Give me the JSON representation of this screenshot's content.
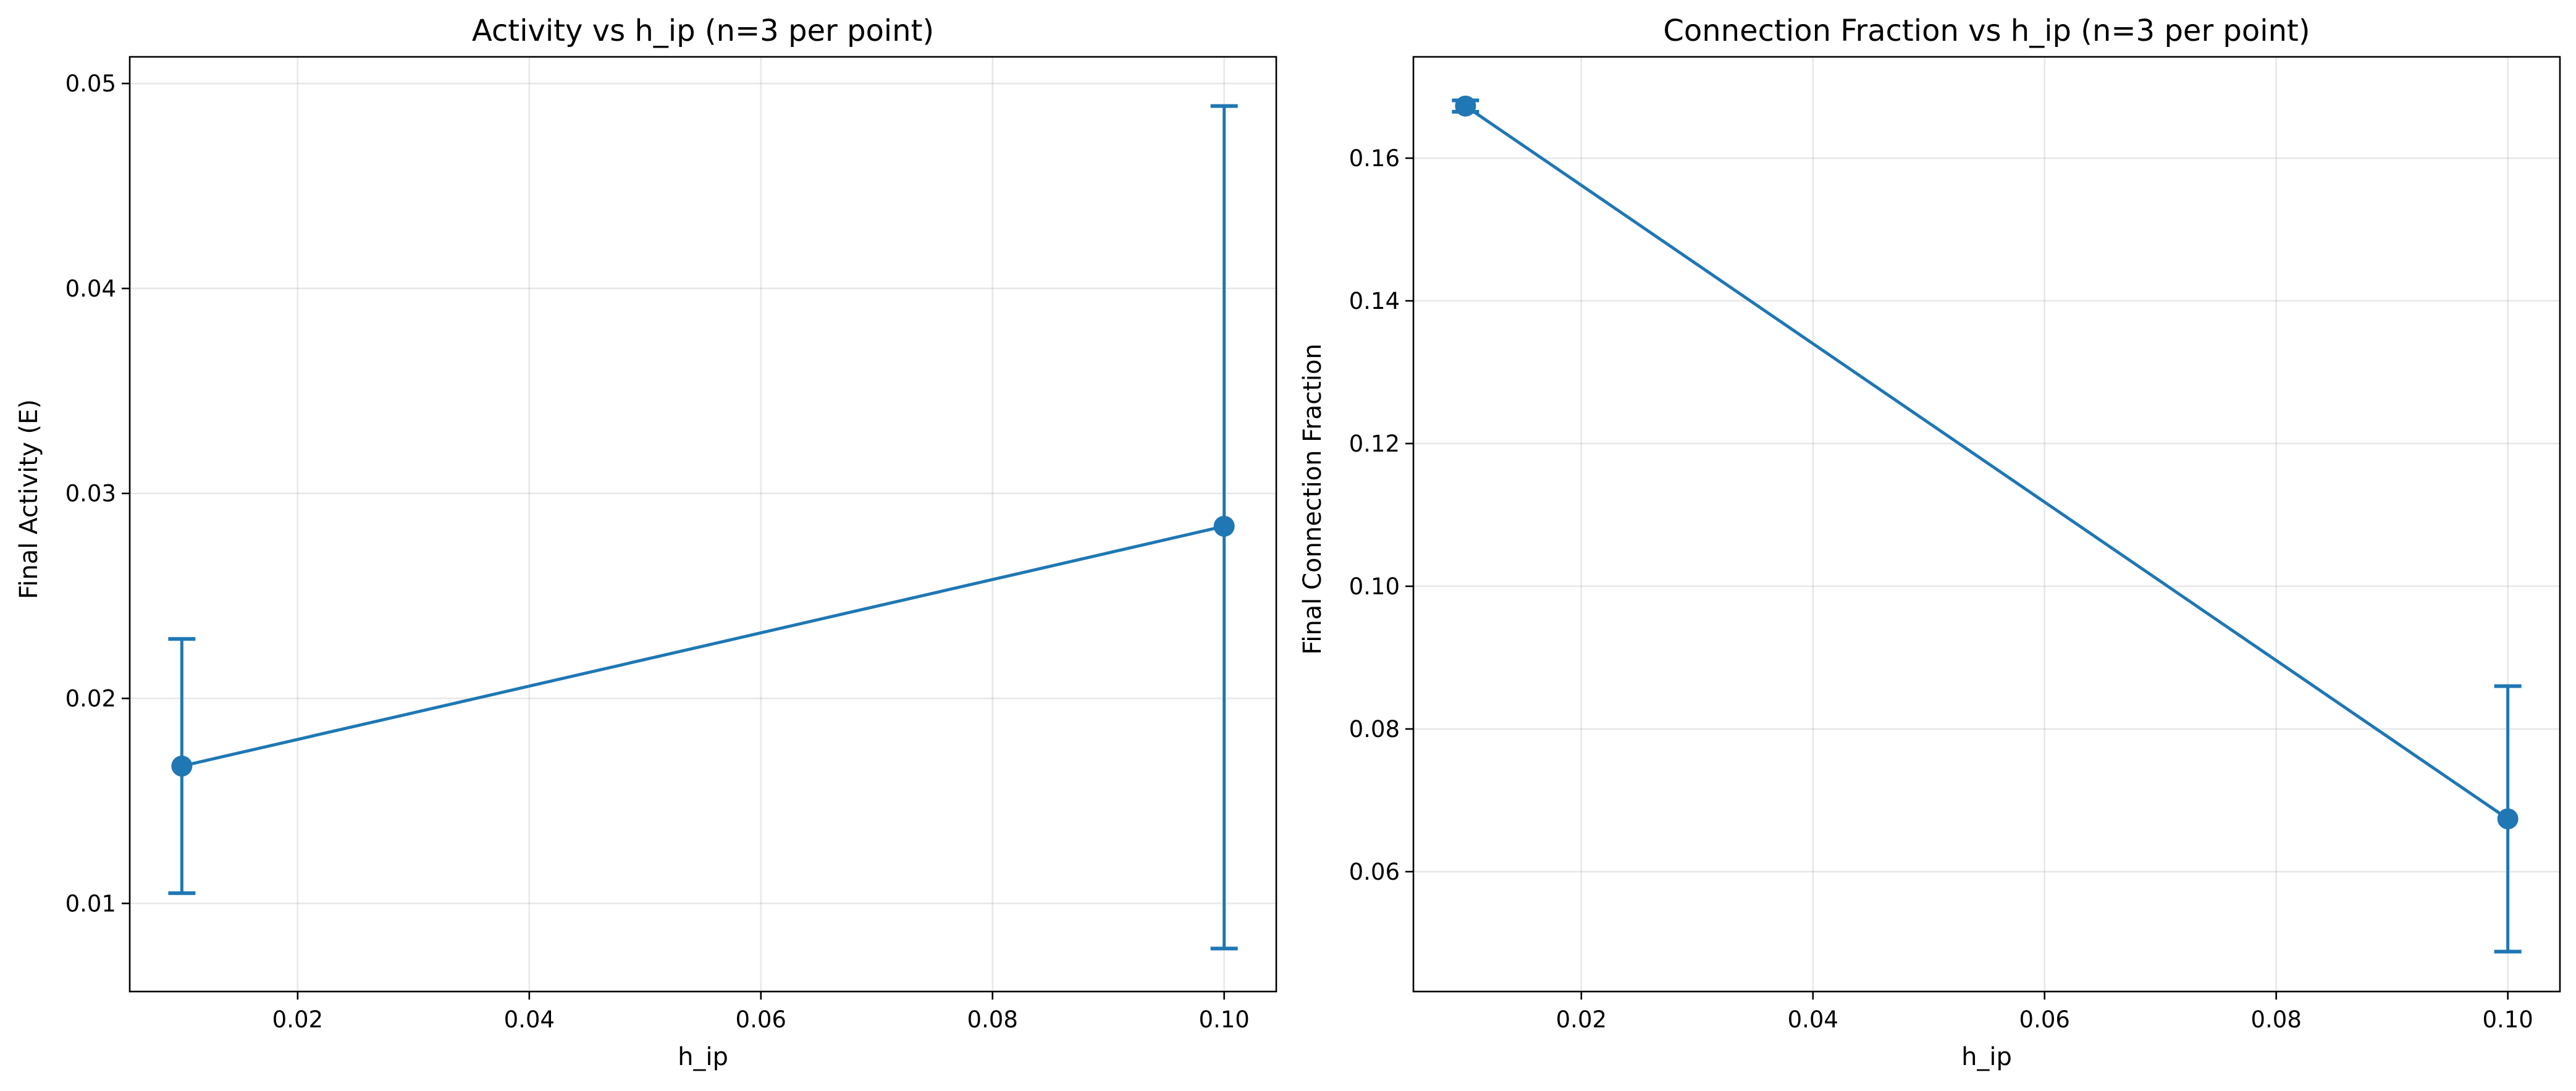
{
  "chart_data": [
    {
      "type": "line",
      "title": "Activity vs h_ip (n=3 per point)",
      "xlabel": "h_ip",
      "ylabel": "Final Activity (E)",
      "xlim": [
        0.0055,
        0.1045
      ],
      "ylim": [
        0.0057,
        0.0513
      ],
      "xticks": [
        0.02,
        0.04,
        0.06,
        0.08,
        0.1
      ],
      "xtick_labels": [
        "0.02",
        "0.04",
        "0.06",
        "0.08",
        "0.10"
      ],
      "yticks": [
        0.01,
        0.02,
        0.03,
        0.04,
        0.05
      ],
      "ytick_labels": [
        "0.01",
        "0.02",
        "0.03",
        "0.04",
        "0.05"
      ],
      "grid": true,
      "legend": "none",
      "color": "#1f77b4",
      "series": [
        {
          "x": [
            0.01,
            0.1
          ],
          "y": [
            0.0167,
            0.0284
          ],
          "yerr_low": [
            0.0105,
            0.0078
          ],
          "yerr_high": [
            0.0229,
            0.0489
          ]
        }
      ]
    },
    {
      "type": "line",
      "title": "Connection Fraction vs h_ip (n=3 per point)",
      "xlabel": "h_ip",
      "ylabel": "Final Connection Fraction",
      "xlim": [
        0.0055,
        0.1045
      ],
      "ylim": [
        0.0432,
        0.1742
      ],
      "xticks": [
        0.02,
        0.04,
        0.06,
        0.08,
        0.1
      ],
      "xtick_labels": [
        "0.02",
        "0.04",
        "0.06",
        "0.08",
        "0.10"
      ],
      "yticks": [
        0.06,
        0.08,
        0.1,
        0.12,
        0.14,
        0.16
      ],
      "ytick_labels": [
        "0.06",
        "0.08",
        "0.10",
        "0.12",
        "0.14",
        "0.16"
      ],
      "grid": true,
      "legend": "none",
      "color": "#1f77b4",
      "series": [
        {
          "x": [
            0.01,
            0.1
          ],
          "y": [
            0.1673,
            0.0674
          ],
          "yerr_low": [
            0.1665,
            0.0488
          ],
          "yerr_high": [
            0.1681,
            0.086
          ]
        }
      ]
    }
  ]
}
